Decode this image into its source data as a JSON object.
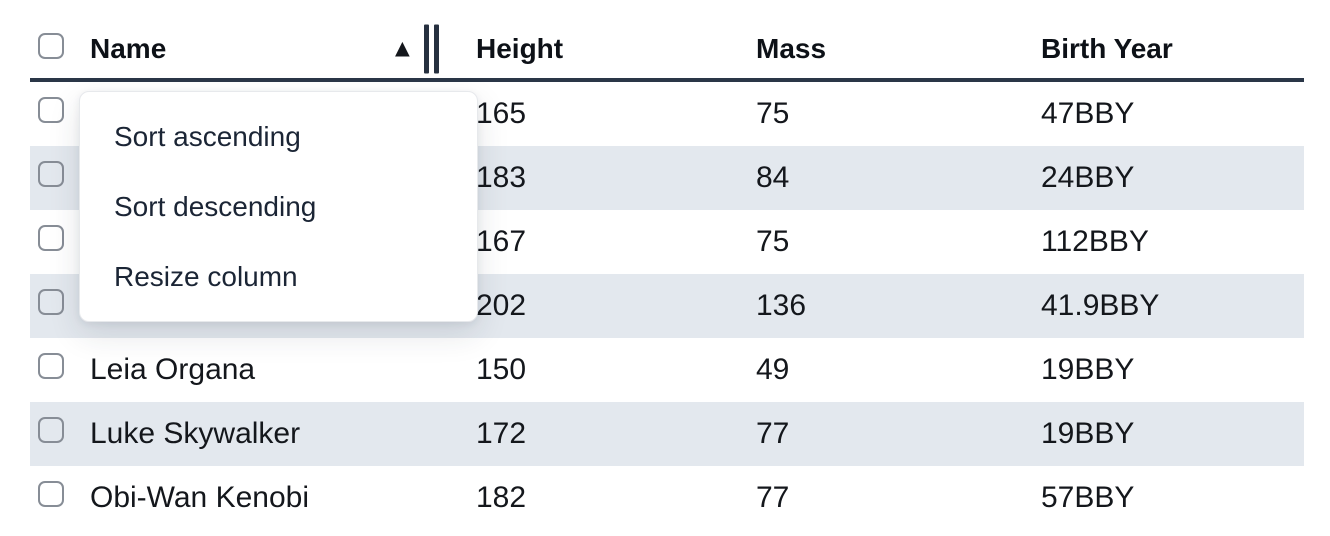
{
  "table": {
    "columns": [
      {
        "label": "Name",
        "sorted": "ascending"
      },
      {
        "label": "Height"
      },
      {
        "label": "Mass"
      },
      {
        "label": "Birth Year"
      }
    ],
    "rows": [
      {
        "name": "",
        "height": "165",
        "mass": "75",
        "birth_year": "47BBY"
      },
      {
        "name": "",
        "height": "183",
        "mass": "84",
        "birth_year": "24BBY"
      },
      {
        "name": "",
        "height": "167",
        "mass": "75",
        "birth_year": "112BBY"
      },
      {
        "name": "",
        "height": "202",
        "mass": "136",
        "birth_year": "41.9BBY"
      },
      {
        "name": "Leia Organa",
        "height": "150",
        "mass": "49",
        "birth_year": "19BBY"
      },
      {
        "name": "Luke Skywalker",
        "height": "172",
        "mass": "77",
        "birth_year": "19BBY"
      },
      {
        "name": "Obi-Wan Kenobi",
        "height": "182",
        "mass": "77",
        "birth_year": "57BBY"
      }
    ]
  },
  "menu": {
    "items": [
      "Sort ascending",
      "Sort descending",
      "Resize column"
    ]
  },
  "icons": {
    "sort_ascending": "▲",
    "resize_handle": "double-vertical-bars"
  },
  "colors": {
    "stripe_row": "#e3e8ee",
    "header_border": "#2a3647",
    "menu_text": "#1b2535",
    "body_text": "#14171c",
    "checkbox_border": "#878d96"
  }
}
